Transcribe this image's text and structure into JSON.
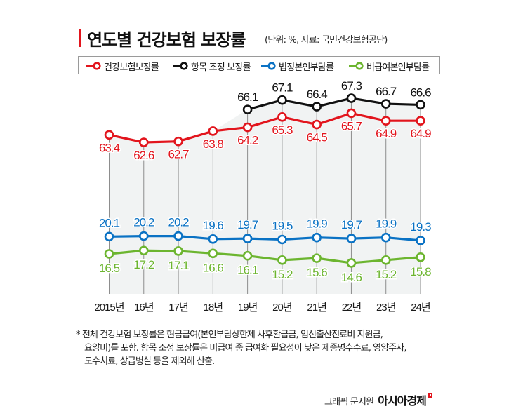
{
  "header": {
    "title": "연도별 건강보험 보장률",
    "subtitle": "(단위: %, 자료: 국민건강보험공단)"
  },
  "legend": [
    {
      "label": "건강보험보장률",
      "color": "#e2151d"
    },
    {
      "label": "항목 조정 보장률",
      "color": "#111111"
    },
    {
      "label": "법정본인부담률",
      "color": "#0a72c4"
    },
    {
      "label": "비급여본인부담률",
      "color": "#6cb52f"
    }
  ],
  "chart_data": {
    "type": "line",
    "title": "연도별 건강보험 보장률",
    "subtitle": "(단위: %, 자료: 국민건강보험공단)",
    "xlabel": "",
    "ylabel": "%",
    "categories": [
      "2015년",
      "16년",
      "17년",
      "18년",
      "19년",
      "20년",
      "21년",
      "22년",
      "23년",
      "24년"
    ],
    "series": [
      {
        "name": "건강보험보장률",
        "color": "#e2151d",
        "values": [
          63.4,
          62.6,
          62.7,
          63.8,
          64.2,
          65.3,
          64.5,
          65.7,
          64.9,
          64.9
        ]
      },
      {
        "name": "항목 조정 보장률",
        "color": "#111111",
        "values": [
          null,
          null,
          null,
          null,
          66.1,
          67.1,
          66.4,
          67.3,
          66.7,
          66.6
        ]
      },
      {
        "name": "법정본인부담률",
        "color": "#0a72c4",
        "values": [
          20.1,
          20.2,
          20.2,
          19.6,
          19.7,
          19.5,
          19.9,
          19.7,
          19.9,
          19.3
        ]
      },
      {
        "name": "비급여본인부담률",
        "color": "#6cb52f",
        "values": [
          16.5,
          17.2,
          17.1,
          16.6,
          16.1,
          15.2,
          15.6,
          14.6,
          15.2,
          15.8
        ]
      }
    ],
    "grid": "vertical drop lines per year",
    "legend_position": "top",
    "data_labels": true
  },
  "footnote": {
    "lines": [
      "* 전체 건강보험 보장률은 현금급여(본인부담상한제 사후환급금, 임신출산진료비 지원금,",
      "요양비)를 포함. 항목 조정 보장률은 비급여 중 급여화 필요성이 낮은 제증명수수료, 영양주사,",
      "도수치료, 상급병실 등을 제외해 산출."
    ]
  },
  "credit": {
    "author": "그래픽 문지원",
    "brand": "아시아경제"
  }
}
